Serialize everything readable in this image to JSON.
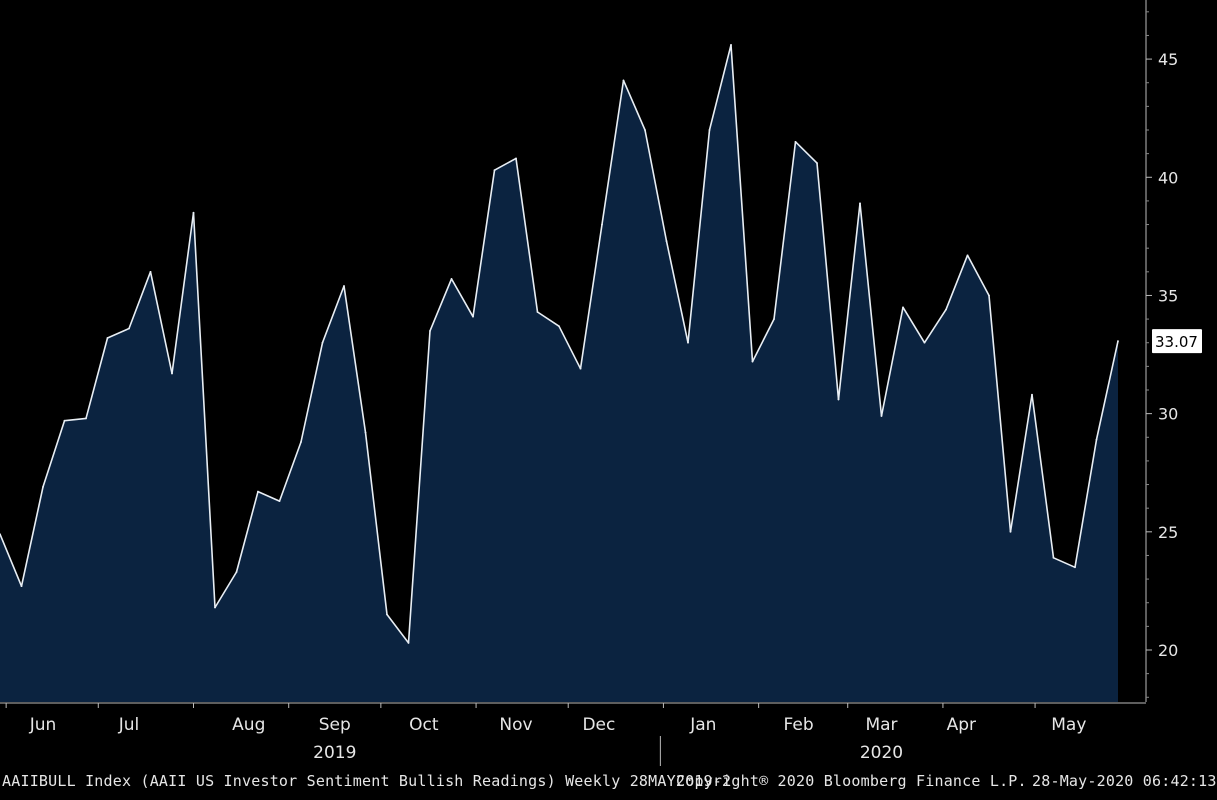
{
  "chart_data": {
    "type": "area",
    "ylim": [
      17.8,
      47.5
    ],
    "y_ticks": [
      20,
      25,
      30,
      35,
      40,
      45
    ],
    "x": [
      "2019-05-30",
      "2019-06-06",
      "2019-06-13",
      "2019-06-20",
      "2019-06-27",
      "2019-07-04",
      "2019-07-11",
      "2019-07-18",
      "2019-07-25",
      "2019-08-01",
      "2019-08-08",
      "2019-08-15",
      "2019-08-22",
      "2019-08-29",
      "2019-09-05",
      "2019-09-12",
      "2019-09-19",
      "2019-09-26",
      "2019-10-03",
      "2019-10-10",
      "2019-10-17",
      "2019-10-24",
      "2019-10-31",
      "2019-11-07",
      "2019-11-14",
      "2019-11-21",
      "2019-11-28",
      "2019-12-05",
      "2019-12-12",
      "2019-12-19",
      "2019-12-26",
      "2020-01-02",
      "2020-01-09",
      "2020-01-16",
      "2020-01-23",
      "2020-01-30",
      "2020-02-06",
      "2020-02-13",
      "2020-02-20",
      "2020-02-27",
      "2020-03-05",
      "2020-03-12",
      "2020-03-19",
      "2020-03-26",
      "2020-04-02",
      "2020-04-09",
      "2020-04-16",
      "2020-04-23",
      "2020-04-30",
      "2020-05-07",
      "2020-05-14",
      "2020-05-21",
      "2020-05-28"
    ],
    "values": [
      24.9,
      22.7,
      26.9,
      29.7,
      29.8,
      33.2,
      33.6,
      36.0,
      31.7,
      38.5,
      21.8,
      23.3,
      26.7,
      26.3,
      28.8,
      33.0,
      35.4,
      29.2,
      21.5,
      20.3,
      33.5,
      35.7,
      34.1,
      40.3,
      40.8,
      34.3,
      33.7,
      31.9,
      38.0,
      44.1,
      42.0,
      37.3,
      33.0,
      42.0,
      45.6,
      32.2,
      34.0,
      41.5,
      40.6,
      30.6,
      38.9,
      29.9,
      34.5,
      33.0,
      34.4,
      36.7,
      35.0,
      25.0,
      30.8,
      23.9,
      23.5,
      28.9,
      33.07
    ],
    "last_value_label": "33.07",
    "x_month_labels": [
      {
        "label": "Jun",
        "date": "2019-06-13"
      },
      {
        "label": "Jul",
        "date": "2019-07-11"
      },
      {
        "label": "Aug",
        "date": "2019-08-19"
      },
      {
        "label": "Sep",
        "date": "2019-09-16"
      },
      {
        "label": "Oct",
        "date": "2019-10-15"
      },
      {
        "label": "Nov",
        "date": "2019-11-14"
      },
      {
        "label": "Dec",
        "date": "2019-12-11"
      },
      {
        "label": "Jan",
        "date": "2020-01-14"
      },
      {
        "label": "Feb",
        "date": "2020-02-14"
      },
      {
        "label": "Mar",
        "date": "2020-03-12"
      },
      {
        "label": "Apr",
        "date": "2020-04-07"
      },
      {
        "label": "May",
        "date": "2020-05-12"
      }
    ],
    "x_year_labels": [
      {
        "label": "2019",
        "date": "2019-09-16"
      },
      {
        "label": "2020",
        "date": "2020-03-12"
      }
    ],
    "year_divider_date": "2019-12-31",
    "grid": false,
    "fill_color": "#0b2340",
    "line_color": "#e8eef4"
  },
  "footer": {
    "left": "AAIIBULL Index (AAII US Investor Sentiment Bullish Readings) Weekly 28MAY2019-2",
    "center": "Copyright® 2020 Bloomberg Finance L.P.",
    "right": "28-May-2020 06:42:13"
  }
}
